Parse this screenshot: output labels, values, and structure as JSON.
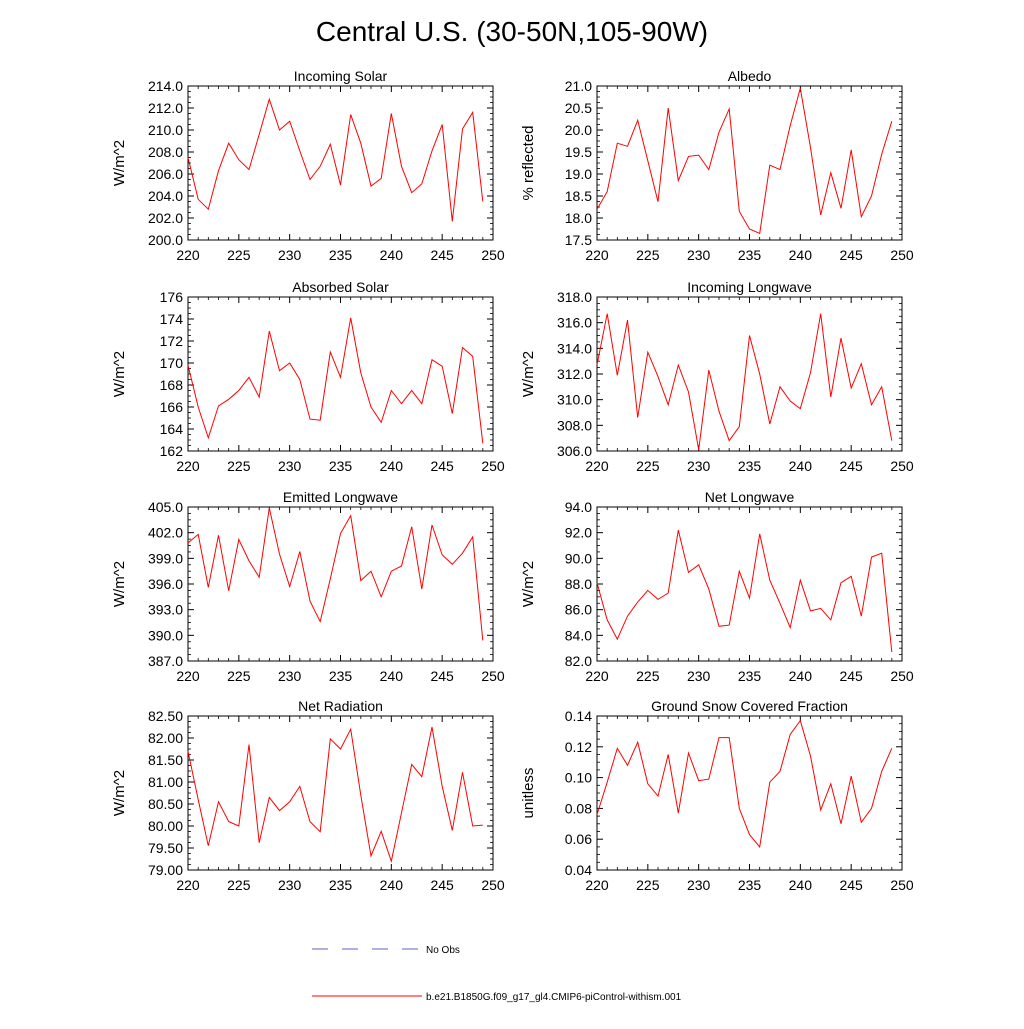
{
  "page": {
    "title": "Central U.S. (30-50N,105-90W)"
  },
  "legend": {
    "entries": [
      {
        "label": "No Obs",
        "color": "#6060c8",
        "style": "dashed"
      },
      {
        "label": "b.e21.B1850G.f09_g17_gl4.CMIP6-piControl-withism.001",
        "color": "#ff0000",
        "style": "solid"
      }
    ]
  },
  "chart_data": [
    {
      "type": "line",
      "title": "Incoming Solar",
      "xlabel": "",
      "ylabel": "W/m^2",
      "xlim": [
        220,
        250
      ],
      "ylim": [
        200,
        214
      ],
      "xticks": [
        "220",
        "225",
        "230",
        "235",
        "240",
        "245",
        "250"
      ],
      "yticks": [
        "200.0",
        "202.0",
        "204.0",
        "206.0",
        "208.0",
        "210.0",
        "212.0",
        "214.0"
      ],
      "series": [
        {
          "name": "b.e21.B1850G.f09_g17_gl4.CMIP6-piControl-withism.001",
          "color": "#ff0000",
          "x": [
            220,
            221,
            222,
            223,
            224,
            225,
            226,
            227,
            228,
            229,
            230,
            231,
            232,
            233,
            234,
            235,
            236,
            237,
            238,
            239,
            240,
            241,
            242,
            243,
            244,
            245,
            246,
            247,
            248,
            249
          ],
          "values": [
            207.5,
            203.7,
            202.8,
            206.3,
            208.8,
            207.3,
            206.4,
            209.6,
            212.8,
            210.0,
            210.8,
            208.1,
            205.5,
            206.7,
            208.7,
            205.0,
            211.4,
            208.8,
            204.9,
            205.6,
            211.5,
            206.7,
            204.3,
            205.1,
            208.1,
            210.5,
            201.7,
            210.1,
            211.6,
            203.5
          ]
        }
      ]
    },
    {
      "type": "line",
      "title": "Albedo",
      "xlabel": "",
      "ylabel": "% reflected",
      "xlim": [
        220,
        250
      ],
      "ylim": [
        17.5,
        21.0
      ],
      "xticks": [
        "220",
        "225",
        "230",
        "235",
        "240",
        "245",
        "250"
      ],
      "yticks": [
        "17.5",
        "18.0",
        "18.5",
        "19.0",
        "19.5",
        "20.0",
        "20.5",
        "21.0"
      ],
      "series": [
        {
          "name": "b.e21.B1850G.f09_g17_gl4.CMIP6-piControl-withism.001",
          "color": "#ff0000",
          "x": [
            220,
            221,
            222,
            223,
            224,
            225,
            226,
            227,
            228,
            229,
            230,
            231,
            232,
            233,
            234,
            235,
            236,
            237,
            238,
            239,
            240,
            241,
            242,
            243,
            244,
            245,
            246,
            247,
            248,
            249
          ],
          "values": [
            18.2,
            18.6,
            19.7,
            19.63,
            20.22,
            19.3,
            18.37,
            20.5,
            18.85,
            19.4,
            19.43,
            19.1,
            19.95,
            20.48,
            18.15,
            17.75,
            17.65,
            19.2,
            19.1,
            20.1,
            20.95,
            19.6,
            18.07,
            19.03,
            18.22,
            19.55,
            18.03,
            18.5,
            19.45,
            20.2
          ]
        }
      ]
    },
    {
      "type": "line",
      "title": "Absorbed Solar",
      "xlabel": "",
      "ylabel": "W/m^2",
      "xlim": [
        220,
        250
      ],
      "ylim": [
        162,
        176
      ],
      "xticks": [
        "220",
        "225",
        "230",
        "235",
        "240",
        "245",
        "250"
      ],
      "yticks": [
        "162",
        "164",
        "166",
        "168",
        "170",
        "172",
        "174",
        "176"
      ],
      "series": [
        {
          "name": "b.e21.B1850G.f09_g17_gl4.CMIP6-piControl-withism.001",
          "color": "#ff0000",
          "x": [
            220,
            221,
            222,
            223,
            224,
            225,
            226,
            227,
            228,
            229,
            230,
            231,
            232,
            233,
            234,
            235,
            236,
            237,
            238,
            239,
            240,
            241,
            242,
            243,
            244,
            245,
            246,
            247,
            248,
            249
          ],
          "values": [
            169.8,
            166.0,
            163.2,
            166.1,
            166.7,
            167.5,
            168.7,
            166.9,
            172.9,
            169.3,
            170.0,
            168.5,
            164.9,
            164.8,
            171.0,
            168.7,
            174.1,
            169.1,
            166.0,
            164.6,
            167.5,
            166.3,
            167.5,
            166.3,
            170.3,
            169.7,
            165.4,
            171.4,
            170.6,
            162.7
          ]
        }
      ]
    },
    {
      "type": "line",
      "title": "Incoming Longwave",
      "xlabel": "",
      "ylabel": "W/m^2",
      "xlim": [
        220,
        250
      ],
      "ylim": [
        306,
        318
      ],
      "xticks": [
        "220",
        "225",
        "230",
        "235",
        "240",
        "245",
        "250"
      ],
      "yticks": [
        "306.0",
        "308.0",
        "310.0",
        "312.0",
        "314.0",
        "316.0",
        "318.0"
      ],
      "series": [
        {
          "name": "b.e21.B1850G.f09_g17_gl4.CMIP6-piControl-withism.001",
          "color": "#ff0000",
          "x": [
            220,
            221,
            222,
            223,
            224,
            225,
            226,
            227,
            228,
            229,
            230,
            231,
            232,
            233,
            234,
            235,
            236,
            237,
            238,
            239,
            240,
            241,
            242,
            243,
            244,
            245,
            246,
            247,
            248,
            249
          ],
          "values": [
            312.7,
            316.7,
            311.9,
            316.2,
            308.6,
            313.7,
            311.8,
            309.6,
            312.7,
            310.6,
            306.1,
            312.3,
            309.1,
            306.8,
            307.9,
            315.0,
            312.0,
            308.1,
            311.0,
            309.9,
            309.3,
            312.1,
            316.7,
            310.2,
            314.8,
            310.9,
            312.8,
            309.6,
            311.0,
            306.8
          ]
        }
      ]
    },
    {
      "type": "line",
      "title": "Emitted Longwave",
      "xlabel": "",
      "ylabel": "W/m^2",
      "xlim": [
        220,
        250
      ],
      "ylim": [
        387,
        405
      ],
      "xticks": [
        "220",
        "225",
        "230",
        "235",
        "240",
        "245",
        "250"
      ],
      "yticks": [
        "387.0",
        "390.0",
        "393.0",
        "396.0",
        "399.0",
        "402.0",
        "405.0"
      ],
      "series": [
        {
          "name": "b.e21.B1850G.f09_g17_gl4.CMIP6-piControl-withism.001",
          "color": "#ff0000",
          "x": [
            220,
            221,
            222,
            223,
            224,
            225,
            226,
            227,
            228,
            229,
            230,
            231,
            232,
            233,
            234,
            235,
            236,
            237,
            238,
            239,
            240,
            241,
            242,
            243,
            244,
            245,
            246,
            247,
            248,
            249
          ],
          "values": [
            400.8,
            401.8,
            395.6,
            401.7,
            395.2,
            401.2,
            398.7,
            396.8,
            404.9,
            399.5,
            395.7,
            399.8,
            394.0,
            391.6,
            396.6,
            401.9,
            404.0,
            396.4,
            397.5,
            394.5,
            397.5,
            398.1,
            402.7,
            395.4,
            402.9,
            399.4,
            398.3,
            399.6,
            401.5,
            389.4
          ]
        }
      ]
    },
    {
      "type": "line",
      "title": "Net Longwave",
      "xlabel": "",
      "ylabel": "W/m^2",
      "xlim": [
        220,
        250
      ],
      "ylim": [
        82,
        94
      ],
      "xticks": [
        "220",
        "225",
        "230",
        "235",
        "240",
        "245",
        "250"
      ],
      "yticks": [
        "82.0",
        "84.0",
        "86.0",
        "88.0",
        "90.0",
        "92.0",
        "94.0"
      ],
      "series": [
        {
          "name": "b.e21.B1850G.f09_g17_gl4.CMIP6-piControl-withism.001",
          "color": "#ff0000",
          "x": [
            220,
            221,
            222,
            223,
            224,
            225,
            226,
            227,
            228,
            229,
            230,
            231,
            232,
            233,
            234,
            235,
            236,
            237,
            238,
            239,
            240,
            241,
            242,
            243,
            244,
            245,
            246,
            247,
            248,
            249
          ],
          "values": [
            88.1,
            85.2,
            83.7,
            85.5,
            86.6,
            87.5,
            86.8,
            87.3,
            92.2,
            88.9,
            89.5,
            87.6,
            84.7,
            84.8,
            89.0,
            86.9,
            91.9,
            88.3,
            86.5,
            84.6,
            88.3,
            85.9,
            86.1,
            85.2,
            88.1,
            88.6,
            85.5,
            90.1,
            90.4,
            82.7
          ]
        }
      ]
    },
    {
      "type": "line",
      "title": "Net Radiation",
      "xlabel": "",
      "ylabel": "W/m^2",
      "xlim": [
        220,
        250
      ],
      "ylim": [
        79.0,
        82.5
      ],
      "xticks": [
        "220",
        "225",
        "230",
        "235",
        "240",
        "245",
        "250"
      ],
      "yticks": [
        "79.00",
        "79.50",
        "80.00",
        "80.50",
        "81.00",
        "81.50",
        "82.00",
        "82.50"
      ],
      "series": [
        {
          "name": "b.e21.B1850G.f09_g17_gl4.CMIP6-piControl-withism.001",
          "color": "#ff0000",
          "x": [
            220,
            221,
            222,
            223,
            224,
            225,
            226,
            227,
            228,
            229,
            230,
            231,
            232,
            233,
            234,
            235,
            236,
            237,
            238,
            239,
            240,
            241,
            242,
            243,
            244,
            245,
            246,
            247,
            248,
            249
          ],
          "values": [
            81.7,
            80.6,
            79.55,
            80.55,
            80.1,
            80.0,
            81.85,
            79.62,
            80.65,
            80.35,
            80.55,
            80.9,
            80.1,
            79.87,
            81.98,
            81.75,
            82.2,
            80.7,
            79.32,
            79.88,
            79.2,
            80.3,
            81.4,
            81.12,
            82.25,
            80.9,
            79.9,
            81.22,
            80.0,
            80.02
          ]
        }
      ]
    },
    {
      "type": "line",
      "title": "Ground Snow Covered Fraction",
      "xlabel": "",
      "ylabel": "unitless",
      "xlim": [
        220,
        250
      ],
      "ylim": [
        0.04,
        0.14
      ],
      "xticks": [
        "220",
        "225",
        "230",
        "235",
        "240",
        "245",
        "250"
      ],
      "yticks": [
        "0.04",
        "0.06",
        "0.08",
        "0.10",
        "0.12",
        "0.14"
      ],
      "series": [
        {
          "name": "b.e21.B1850G.f09_g17_gl4.CMIP6-piControl-withism.001",
          "color": "#ff0000",
          "x": [
            220,
            221,
            222,
            223,
            224,
            225,
            226,
            227,
            228,
            229,
            230,
            231,
            232,
            233,
            234,
            235,
            236,
            237,
            238,
            239,
            240,
            241,
            242,
            243,
            244,
            245,
            246,
            247,
            248,
            249
          ],
          "values": [
            0.076,
            0.097,
            0.119,
            0.108,
            0.123,
            0.096,
            0.088,
            0.115,
            0.077,
            0.116,
            0.098,
            0.099,
            0.126,
            0.126,
            0.08,
            0.063,
            0.055,
            0.097,
            0.104,
            0.128,
            0.137,
            0.114,
            0.079,
            0.096,
            0.07,
            0.101,
            0.071,
            0.08,
            0.104,
            0.119
          ]
        }
      ]
    }
  ]
}
